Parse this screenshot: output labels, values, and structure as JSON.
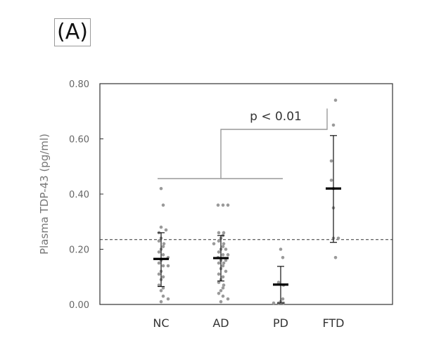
{
  "panel_label": "(A)",
  "chart_data": {
    "type": "scatter",
    "ylabel": "Plasma TDP-43 (pg/ml)",
    "ylim": [
      0,
      0.8
    ],
    "yticks": [
      "0.00",
      "0.20",
      "0.40",
      "0.60",
      "0.80"
    ],
    "categories": [
      "NC",
      "AD",
      "PD",
      "FTD"
    ],
    "cutoff": 0.235,
    "groups": [
      {
        "name": "NC",
        "mean": 0.165,
        "sd_low": 0.065,
        "sd_high": 0.26,
        "points": [
          0.42,
          0.36,
          0.28,
          0.27,
          0.26,
          0.24,
          0.23,
          0.22,
          0.21,
          0.2,
          0.19,
          0.18,
          0.17,
          0.16,
          0.15,
          0.14,
          0.14,
          0.12,
          0.11,
          0.1,
          0.09,
          0.07,
          0.06,
          0.05,
          0.03,
          0.02,
          0.01
        ]
      },
      {
        "name": "AD",
        "mean": 0.168,
        "sd_low": 0.085,
        "sd_high": 0.25,
        "points": [
          0.36,
          0.36,
          0.36,
          0.26,
          0.26,
          0.25,
          0.24,
          0.23,
          0.22,
          0.22,
          0.21,
          0.2,
          0.2,
          0.19,
          0.18,
          0.18,
          0.17,
          0.16,
          0.16,
          0.15,
          0.15,
          0.14,
          0.13,
          0.12,
          0.11,
          0.1,
          0.09,
          0.08,
          0.07,
          0.06,
          0.05,
          0.04,
          0.03,
          0.02,
          0.01
        ]
      },
      {
        "name": "PD",
        "mean": 0.072,
        "sd_low": 0.005,
        "sd_high": 0.138,
        "points": [
          0.2,
          0.17,
          0.08,
          0.07,
          0.02,
          0.01,
          0.005,
          0.005,
          0.005
        ]
      },
      {
        "name": "FTD",
        "mean": 0.42,
        "sd_low": 0.225,
        "sd_high": 0.612,
        "points": [
          0.74,
          0.65,
          0.52,
          0.45,
          0.42,
          0.35,
          0.24,
          0.24,
          0.17
        ]
      }
    ],
    "significance": {
      "label": "p < 0.01",
      "left_groups": [
        "NC",
        "AD",
        "PD"
      ],
      "right_group": "FTD"
    },
    "grid": false
  }
}
